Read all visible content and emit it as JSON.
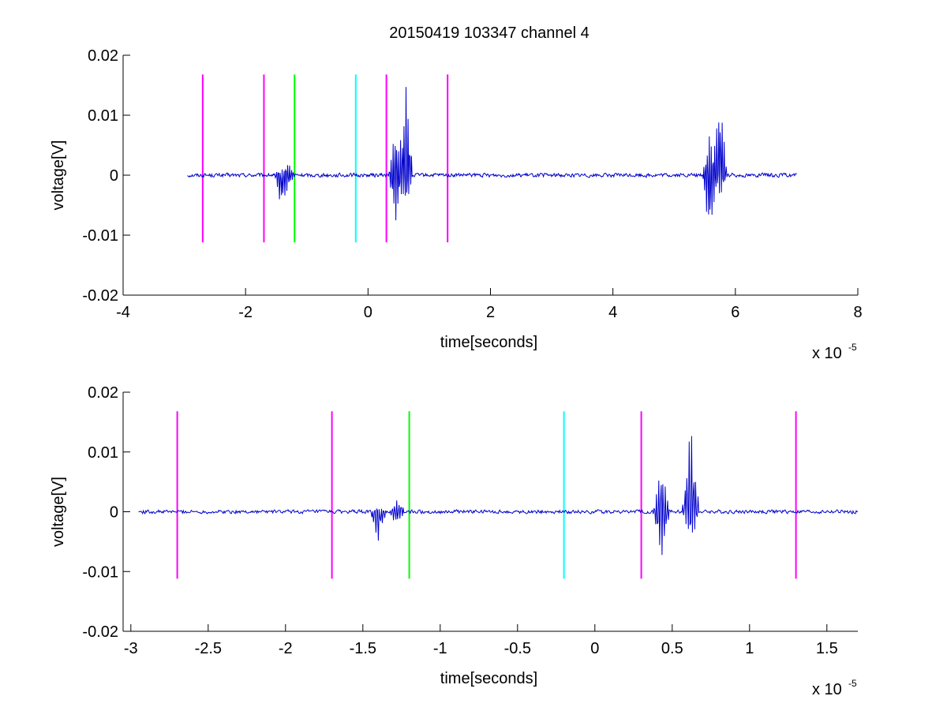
{
  "figure_title": "20150419 103347 channel 4",
  "chart_data": [
    {
      "type": "line",
      "title": "20150419 103347 channel 4",
      "xlabel": "time[seconds]",
      "ylabel": "voltage[V]",
      "x_exponent_label": "x 10",
      "x_exponent": "-5",
      "xlim": [
        -4,
        8
      ],
      "ylim": [
        -0.02,
        0.02
      ],
      "x_ticks": [
        -4,
        -2,
        0,
        2,
        4,
        6,
        8
      ],
      "x_tick_labels": [
        "-4",
        "-2",
        "0",
        "2",
        "4",
        "6",
        "8"
      ],
      "y_ticks": [
        0.02,
        0.01,
        0,
        -0.01,
        -0.02
      ],
      "y_tick_labels": [
        "0.02",
        "0.01",
        "0",
        "-0.01",
        "-0.02"
      ],
      "grid": false,
      "series": [
        {
          "color": "#0000cc",
          "x_range": [
            -2.95,
            7.0
          ],
          "baseline": 0,
          "noise_amplitude": 0.0004,
          "events": [
            {
              "x": -1.42,
              "min": -0.005,
              "max": 0.0005
            },
            {
              "x": -1.3,
              "min": -0.002,
              "max": 0.002
            },
            {
              "x": 0.45,
              "min": -0.008,
              "max": 0.0075
            },
            {
              "x": 0.62,
              "min": -0.005,
              "max": 0.015
            },
            {
              "x": 5.58,
              "min": -0.0102,
              "max": 0.0068
            },
            {
              "x": 5.75,
              "min": -0.0035,
              "max": 0.0135
            }
          ]
        }
      ],
      "markers": [
        {
          "x": -2.7,
          "color": "#ff00ff"
        },
        {
          "x": -1.7,
          "color": "#ff00ff"
        },
        {
          "x": -1.2,
          "color": "#00ff00"
        },
        {
          "x": -0.2,
          "color": "#00ffff"
        },
        {
          "x": 0.3,
          "color": "#ff00ff"
        },
        {
          "x": 1.3,
          "color": "#ff00ff"
        }
      ],
      "marker_y_range": [
        -0.0112,
        0.0168
      ]
    },
    {
      "type": "line",
      "title": "",
      "xlabel": "time[seconds]",
      "ylabel": "voltage[V]",
      "x_exponent_label": "x 10",
      "x_exponent": "-5",
      "xlim": [
        -3.05,
        1.7
      ],
      "ylim": [
        -0.02,
        0.02
      ],
      "x_ticks": [
        -3,
        -2.5,
        -2,
        -1.5,
        -1,
        -0.5,
        0,
        0.5,
        1,
        1.5
      ],
      "x_tick_labels": [
        "-3",
        "-2.5",
        "-2",
        "-1.5",
        "-1",
        "-0.5",
        "0",
        "0.5",
        "1",
        "1.5"
      ],
      "y_ticks": [
        0.02,
        0.01,
        0,
        -0.01,
        -0.02
      ],
      "y_tick_labels": [
        "0.02",
        "0.01",
        "0",
        "-0.01",
        "-0.02"
      ],
      "grid": false,
      "series": [
        {
          "color": "#0000cc",
          "x_range": [
            -2.95,
            1.7
          ],
          "baseline": 0,
          "noise_amplitude": 0.0004,
          "events": [
            {
              "x": -1.4,
              "min": -0.005,
              "max": 0.0005
            },
            {
              "x": -1.28,
              "min": -0.002,
              "max": 0.002
            },
            {
              "x": 0.43,
              "min": -0.008,
              "max": 0.0075
            },
            {
              "x": 0.62,
              "min": -0.005,
              "max": 0.015
            }
          ]
        }
      ],
      "markers": [
        {
          "x": -2.7,
          "color": "#ff00ff"
        },
        {
          "x": -1.7,
          "color": "#ff00ff"
        },
        {
          "x": -1.2,
          "color": "#00ff00"
        },
        {
          "x": -0.2,
          "color": "#00ffff"
        },
        {
          "x": 0.3,
          "color": "#ff00ff"
        },
        {
          "x": 1.3,
          "color": "#ff00ff"
        }
      ],
      "marker_y_range": [
        -0.0112,
        0.0168
      ]
    }
  ]
}
